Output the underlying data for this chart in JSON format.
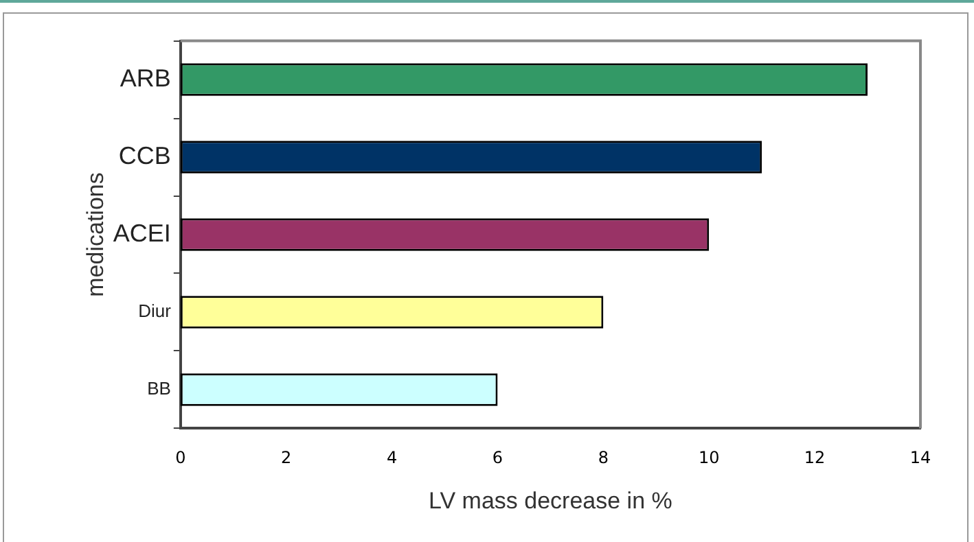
{
  "chart_data": {
    "type": "bar",
    "orientation": "horizontal",
    "xlabel": "LV mass decrease in %",
    "ylabel": "medications",
    "categories": [
      "ARB",
      "CCB",
      "ACEI",
      "Diur",
      "BB"
    ],
    "values": [
      13,
      11,
      10,
      8,
      6
    ],
    "colors": [
      "#339966",
      "#003366",
      "#993366",
      "#ffff99",
      "#ccffff"
    ],
    "xlim": [
      0,
      14
    ],
    "xticks": [
      0,
      2,
      4,
      6,
      8,
      10,
      12,
      14
    ],
    "grid": false,
    "legend": false
  }
}
